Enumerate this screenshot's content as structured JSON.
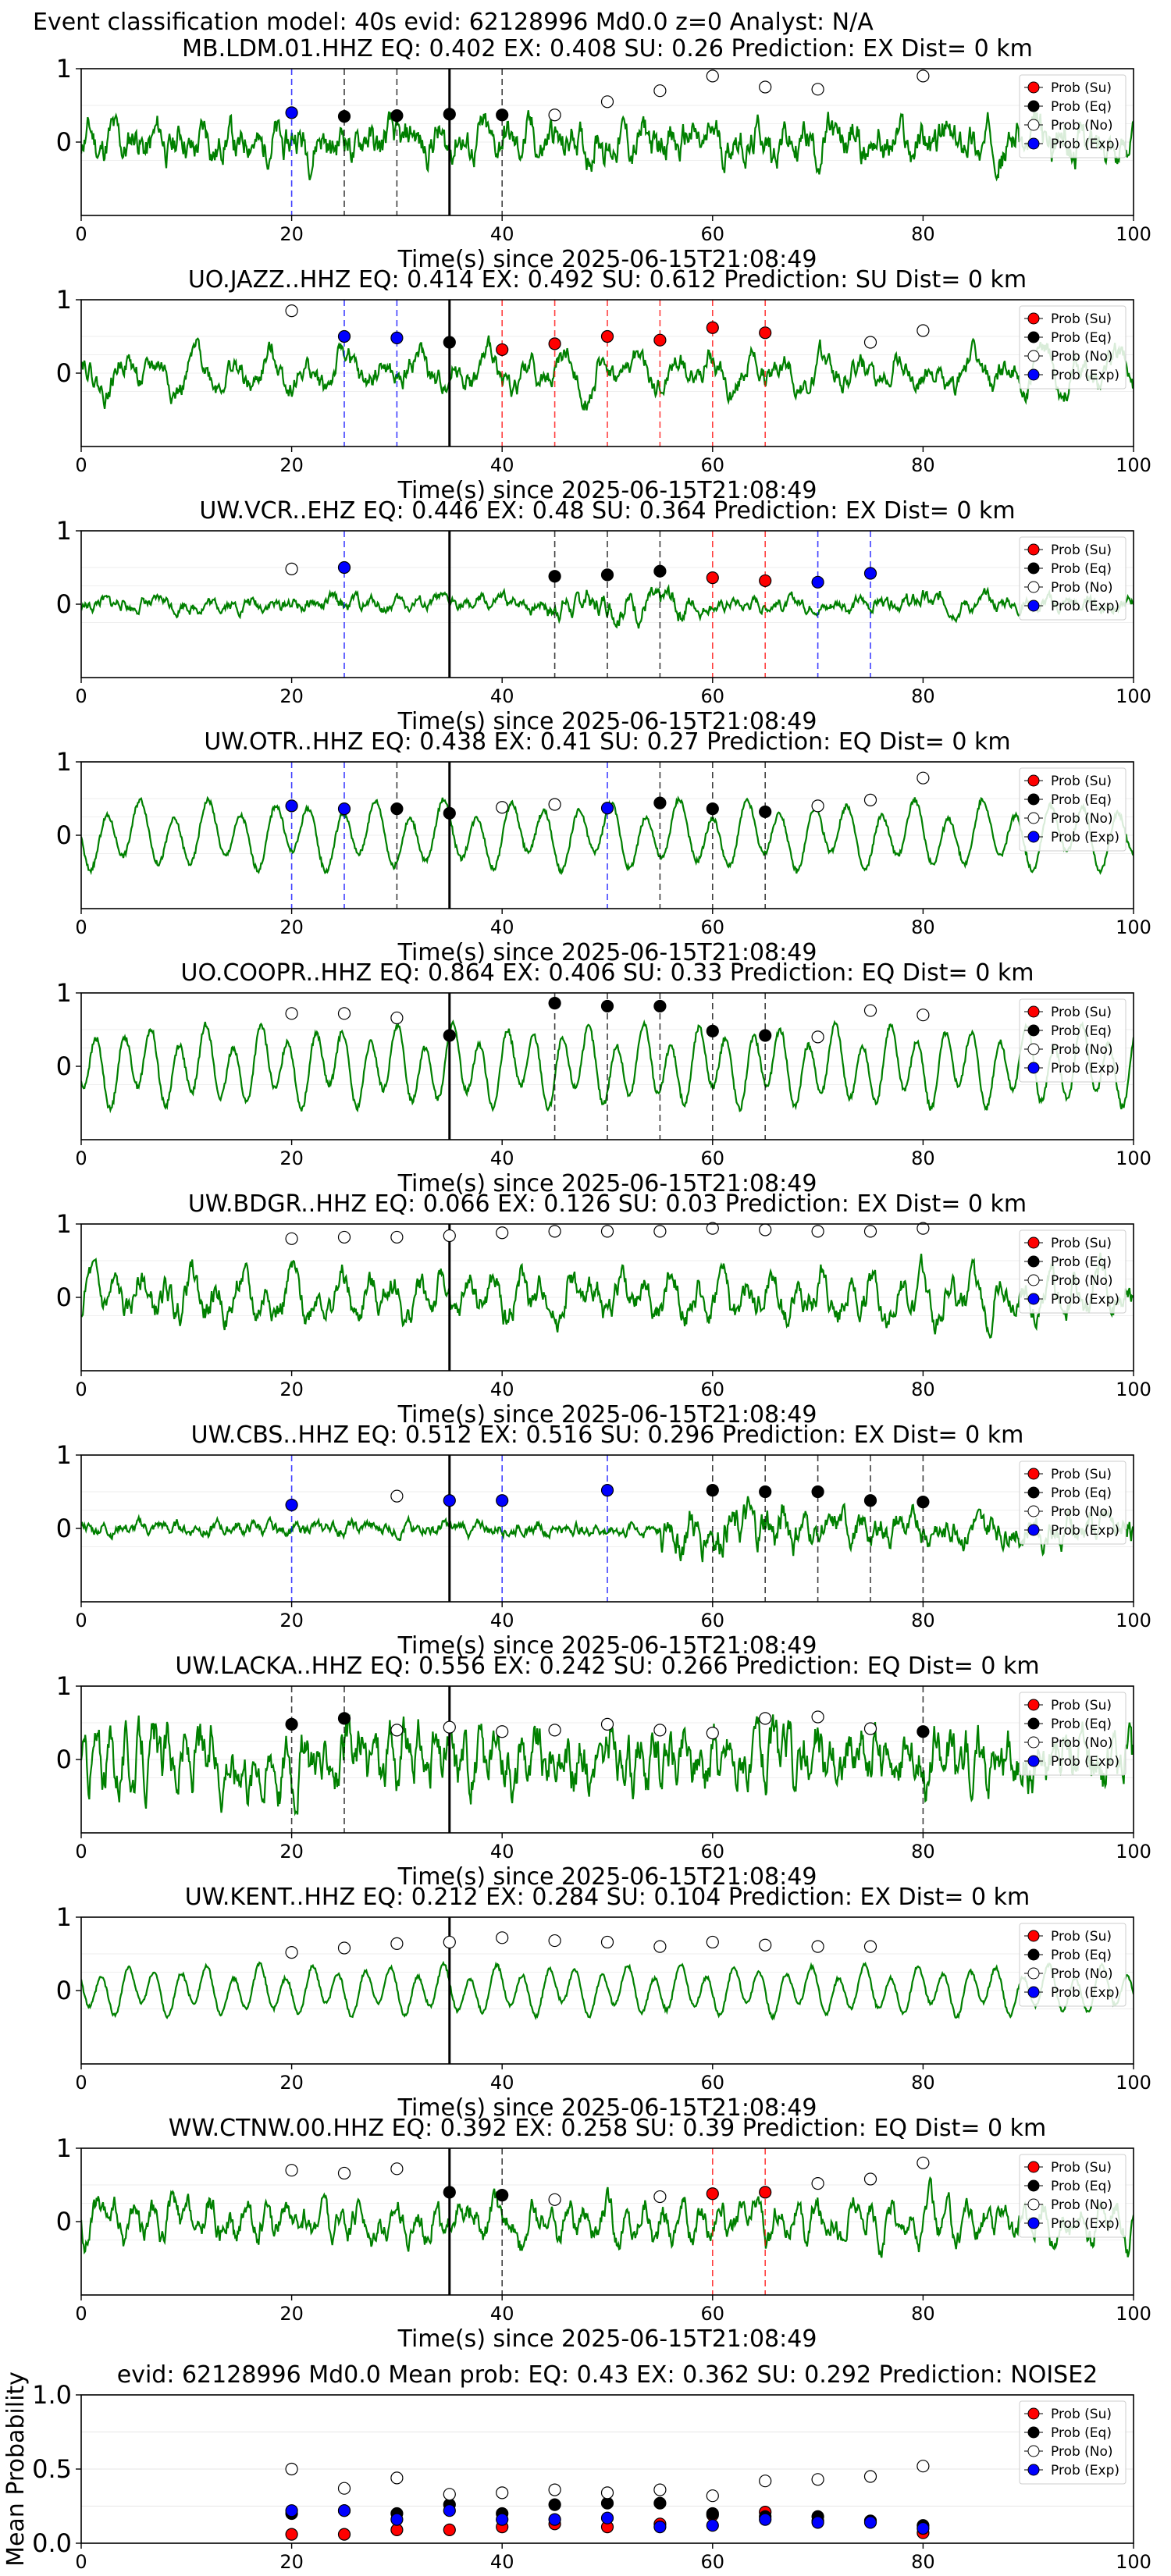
{
  "figure": {
    "suptitle": "Event classification model: 40s evid: 62128996 Md0.0 z=0 Analyst: N/A"
  },
  "legend": {
    "entries": [
      {
        "label": "Prob (Su)",
        "color": "#ff0000",
        "filled": true
      },
      {
        "label": "Prob (Eq)",
        "color": "#000000",
        "filled": true
      },
      {
        "label": "Prob (No)",
        "color": "#ffffff",
        "filled": false
      },
      {
        "label": "Prob (Exp)",
        "color": "#0000ff",
        "filled": true
      }
    ]
  },
  "colors": {
    "waveform": "#008000",
    "su": "#ff0000",
    "eq": "#000000",
    "no": "#ffffff",
    "exp": "#0000ff",
    "event_line": "#000000"
  },
  "chart_data": [
    {
      "type": "line",
      "title": "MB.LDM.01.HHZ   EQ: 0.402  EX: 0.408  SU: 0.26   Prediction: EX    Dist= 0 km",
      "xlabel": "Time(s) since 2025-06-15T21:08:49",
      "xlim": [
        0,
        100
      ],
      "ylim": [
        -1,
        1
      ],
      "xticks": [
        "0",
        "20",
        "40",
        "60",
        "80",
        "100"
      ],
      "yticks": [
        "1",
        "0"
      ],
      "event_time": 35,
      "waveform": {
        "style": "noisy",
        "amplitude": 0.35,
        "period": 2.2,
        "seed": 11
      },
      "points": [
        {
          "t": 20,
          "class": "exp",
          "p": 0.4
        },
        {
          "t": 25,
          "class": "eq",
          "p": 0.35
        },
        {
          "t": 30,
          "class": "eq",
          "p": 0.36
        },
        {
          "t": 35,
          "class": "eq",
          "p": 0.38
        },
        {
          "t": 40,
          "class": "eq",
          "p": 0.37
        },
        {
          "t": 45,
          "class": "no",
          "p": 0.37
        },
        {
          "t": 50,
          "class": "no",
          "p": 0.55
        },
        {
          "t": 55,
          "class": "no",
          "p": 0.7
        },
        {
          "t": 60,
          "class": "no",
          "p": 0.9
        },
        {
          "t": 65,
          "class": "no",
          "p": 0.75
        },
        {
          "t": 70,
          "class": "no",
          "p": 0.72
        },
        {
          "t": 80,
          "class": "no",
          "p": 0.9
        }
      ]
    },
    {
      "type": "line",
      "title": "UO.JAZZ..HHZ   EQ: 0.414  EX: 0.492  SU: 0.612   Prediction: SU    Dist= 0 km",
      "xlabel": "Time(s) since 2025-06-15T21:08:49",
      "xlim": [
        0,
        100
      ],
      "ylim": [
        -1,
        1
      ],
      "xticks": [
        "0",
        "20",
        "40",
        "60",
        "80",
        "100"
      ],
      "yticks": [
        "1",
        "0"
      ],
      "event_time": 35,
      "waveform": {
        "style": "mixed",
        "amplitude": 0.38,
        "period": 3.5,
        "seed": 22
      },
      "points": [
        {
          "t": 20,
          "class": "no",
          "p": 0.85
        },
        {
          "t": 25,
          "class": "exp",
          "p": 0.5
        },
        {
          "t": 30,
          "class": "exp",
          "p": 0.48
        },
        {
          "t": 35,
          "class": "eq",
          "p": 0.42
        },
        {
          "t": 40,
          "class": "su",
          "p": 0.32
        },
        {
          "t": 45,
          "class": "su",
          "p": 0.4
        },
        {
          "t": 50,
          "class": "su",
          "p": 0.5
        },
        {
          "t": 55,
          "class": "su",
          "p": 0.45
        },
        {
          "t": 60,
          "class": "su",
          "p": 0.62
        },
        {
          "t": 65,
          "class": "su",
          "p": 0.55
        },
        {
          "t": 75,
          "class": "no",
          "p": 0.42
        },
        {
          "t": 80,
          "class": "no",
          "p": 0.58
        }
      ]
    },
    {
      "type": "line",
      "title": "UW.VCR..EHZ   EQ: 0.446  EX: 0.48  SU: 0.364   Prediction: EX    Dist= 0 km",
      "xlabel": "Time(s) since 2025-06-15T21:08:49",
      "xlim": [
        0,
        100
      ],
      "ylim": [
        -1,
        1
      ],
      "xticks": [
        "0",
        "20",
        "40",
        "60",
        "80",
        "100"
      ],
      "yticks": [
        "1",
        "0"
      ],
      "event_time": 35,
      "waveform": {
        "style": "quiet",
        "amplitude": 0.25,
        "period": 2.0,
        "seed": 33
      },
      "points": [
        {
          "t": 20,
          "class": "no",
          "p": 0.48
        },
        {
          "t": 25,
          "class": "exp",
          "p": 0.5
        },
        {
          "t": 45,
          "class": "eq",
          "p": 0.38
        },
        {
          "t": 50,
          "class": "eq",
          "p": 0.4
        },
        {
          "t": 55,
          "class": "eq",
          "p": 0.45
        },
        {
          "t": 60,
          "class": "su",
          "p": 0.36
        },
        {
          "t": 65,
          "class": "su",
          "p": 0.32
        },
        {
          "t": 70,
          "class": "exp",
          "p": 0.3
        },
        {
          "t": 75,
          "class": "exp",
          "p": 0.42
        }
      ]
    },
    {
      "type": "line",
      "title": "UW.OTR..HHZ   EQ: 0.438  EX: 0.41  SU: 0.27   Prediction: EQ    Dist= 0 km",
      "xlabel": "Time(s) since 2025-06-15T21:08:49",
      "xlim": [
        0,
        100
      ],
      "ylim": [
        -1,
        1
      ],
      "xticks": [
        "0",
        "20",
        "40",
        "60",
        "80",
        "100"
      ],
      "yticks": [
        "1",
        "0"
      ],
      "event_time": 35,
      "waveform": {
        "style": "smooth",
        "amplitude": 0.55,
        "period": 3.2,
        "seed": 44
      },
      "points": [
        {
          "t": 20,
          "class": "exp",
          "p": 0.4
        },
        {
          "t": 25,
          "class": "exp",
          "p": 0.36
        },
        {
          "t": 30,
          "class": "eq",
          "p": 0.36
        },
        {
          "t": 35,
          "class": "eq",
          "p": 0.3
        },
        {
          "t": 40,
          "class": "no",
          "p": 0.38
        },
        {
          "t": 45,
          "class": "no",
          "p": 0.42
        },
        {
          "t": 50,
          "class": "exp",
          "p": 0.37
        },
        {
          "t": 55,
          "class": "eq",
          "p": 0.44
        },
        {
          "t": 60,
          "class": "eq",
          "p": 0.36
        },
        {
          "t": 65,
          "class": "eq",
          "p": 0.32
        },
        {
          "t": 70,
          "class": "no",
          "p": 0.4
        },
        {
          "t": 75,
          "class": "no",
          "p": 0.48
        },
        {
          "t": 80,
          "class": "no",
          "p": 0.78
        }
      ]
    },
    {
      "type": "line",
      "title": "UO.COOPR..HHZ   EQ: 0.864  EX: 0.406  SU: 0.33   Prediction: EQ    Dist= 0 km",
      "xlabel": "Time(s) since 2025-06-15T21:08:49",
      "xlim": [
        0,
        100
      ],
      "ylim": [
        -1,
        1
      ],
      "xticks": [
        "0",
        "20",
        "40",
        "60",
        "80",
        "100"
      ],
      "yticks": [
        "1",
        "0"
      ],
      "event_time": 35,
      "waveform": {
        "style": "smooth",
        "amplitude": 0.65,
        "period": 2.6,
        "seed": 55
      },
      "points": [
        {
          "t": 20,
          "class": "no",
          "p": 0.72
        },
        {
          "t": 25,
          "class": "no",
          "p": 0.72
        },
        {
          "t": 30,
          "class": "no",
          "p": 0.66
        },
        {
          "t": 35,
          "class": "eq",
          "p": 0.42
        },
        {
          "t": 45,
          "class": "eq",
          "p": 0.86
        },
        {
          "t": 50,
          "class": "eq",
          "p": 0.82
        },
        {
          "t": 55,
          "class": "eq",
          "p": 0.82
        },
        {
          "t": 60,
          "class": "eq",
          "p": 0.48
        },
        {
          "t": 65,
          "class": "eq",
          "p": 0.42
        },
        {
          "t": 70,
          "class": "no",
          "p": 0.4
        },
        {
          "t": 75,
          "class": "no",
          "p": 0.76
        },
        {
          "t": 80,
          "class": "no",
          "p": 0.7
        }
      ]
    },
    {
      "type": "line",
      "title": "UW.BDGR..HHZ   EQ: 0.066  EX: 0.126  SU: 0.03   Prediction: EX    Dist= 0 km",
      "xlabel": "Time(s) since 2025-06-15T21:08:49",
      "xlim": [
        0,
        100
      ],
      "ylim": [
        -1,
        1
      ],
      "xticks": [
        "0",
        "20",
        "40",
        "60",
        "80",
        "100"
      ],
      "yticks": [
        "1",
        "0"
      ],
      "event_time": 35,
      "waveform": {
        "style": "mixed",
        "amplitude": 0.45,
        "period": 2.4,
        "seed": 66
      },
      "points": [
        {
          "t": 20,
          "class": "no",
          "p": 0.8
        },
        {
          "t": 25,
          "class": "no",
          "p": 0.82
        },
        {
          "t": 30,
          "class": "no",
          "p": 0.82
        },
        {
          "t": 35,
          "class": "no",
          "p": 0.84
        },
        {
          "t": 40,
          "class": "no",
          "p": 0.88
        },
        {
          "t": 45,
          "class": "no",
          "p": 0.9
        },
        {
          "t": 50,
          "class": "no",
          "p": 0.9
        },
        {
          "t": 55,
          "class": "no",
          "p": 0.9
        },
        {
          "t": 60,
          "class": "no",
          "p": 0.94
        },
        {
          "t": 65,
          "class": "no",
          "p": 0.92
        },
        {
          "t": 70,
          "class": "no",
          "p": 0.9
        },
        {
          "t": 75,
          "class": "no",
          "p": 0.9
        },
        {
          "t": 80,
          "class": "no",
          "p": 0.94
        }
      ]
    },
    {
      "type": "line",
      "title": "UW.CBS..HHZ   EQ: 0.512  EX: 0.516  SU: 0.296   Prediction: EX    Dist= 0 km",
      "xlabel": "Time(s) since 2025-06-15T21:08:49",
      "xlim": [
        0,
        100
      ],
      "ylim": [
        -1,
        1
      ],
      "xticks": [
        "0",
        "20",
        "40",
        "60",
        "80",
        "100"
      ],
      "yticks": [
        "1",
        "0"
      ],
      "event_time": 35,
      "waveform": {
        "style": "burst",
        "amplitude": 0.18,
        "period": 1.8,
        "seed": 77
      },
      "points": [
        {
          "t": 20,
          "class": "exp",
          "p": 0.32
        },
        {
          "t": 30,
          "class": "no",
          "p": 0.44
        },
        {
          "t": 35,
          "class": "exp",
          "p": 0.38
        },
        {
          "t": 40,
          "class": "exp",
          "p": 0.38
        },
        {
          "t": 50,
          "class": "exp",
          "p": 0.52
        },
        {
          "t": 60,
          "class": "eq",
          "p": 0.52
        },
        {
          "t": 65,
          "class": "eq",
          "p": 0.5
        },
        {
          "t": 70,
          "class": "eq",
          "p": 0.5
        },
        {
          "t": 75,
          "class": "eq",
          "p": 0.38
        },
        {
          "t": 80,
          "class": "eq",
          "p": 0.36
        }
      ]
    },
    {
      "type": "line",
      "title": "UW.LACKA..HHZ   EQ: 0.556  EX: 0.242  SU: 0.266   Prediction: EQ    Dist= 0 km",
      "xlabel": "Time(s) since 2025-06-15T21:08:49",
      "xlim": [
        0,
        100
      ],
      "ylim": [
        -1,
        1
      ],
      "xticks": [
        "0",
        "20",
        "40",
        "60",
        "80",
        "100"
      ],
      "yticks": [
        "1",
        "0"
      ],
      "event_time": 35,
      "waveform": {
        "style": "noisy",
        "amplitude": 0.5,
        "period": 1.4,
        "seed": 88
      },
      "points": [
        {
          "t": 20,
          "class": "eq",
          "p": 0.48
        },
        {
          "t": 25,
          "class": "eq",
          "p": 0.56
        },
        {
          "t": 30,
          "class": "no",
          "p": 0.4
        },
        {
          "t": 35,
          "class": "no",
          "p": 0.44
        },
        {
          "t": 40,
          "class": "no",
          "p": 0.38
        },
        {
          "t": 45,
          "class": "no",
          "p": 0.4
        },
        {
          "t": 50,
          "class": "no",
          "p": 0.48
        },
        {
          "t": 55,
          "class": "no",
          "p": 0.4
        },
        {
          "t": 60,
          "class": "no",
          "p": 0.36
        },
        {
          "t": 65,
          "class": "no",
          "p": 0.56
        },
        {
          "t": 70,
          "class": "no",
          "p": 0.58
        },
        {
          "t": 75,
          "class": "no",
          "p": 0.42
        },
        {
          "t": 80,
          "class": "eq",
          "p": 0.38
        }
      ]
    },
    {
      "type": "line",
      "title": "UW.KENT..HHZ   EQ: 0.212  EX: 0.284  SU: 0.104   Prediction: EX    Dist= 0 km",
      "xlabel": "Time(s) since 2025-06-15T21:08:49",
      "xlim": [
        0,
        100
      ],
      "ylim": [
        -1,
        1
      ],
      "xticks": [
        "0",
        "20",
        "40",
        "60",
        "80",
        "100"
      ],
      "yticks": [
        "1",
        "0"
      ],
      "event_time": 35,
      "waveform": {
        "style": "smooth",
        "amplitude": 0.4,
        "period": 2.5,
        "seed": 99
      },
      "points": [
        {
          "t": 20,
          "class": "no",
          "p": 0.52
        },
        {
          "t": 25,
          "class": "no",
          "p": 0.58
        },
        {
          "t": 30,
          "class": "no",
          "p": 0.64
        },
        {
          "t": 35,
          "class": "no",
          "p": 0.66
        },
        {
          "t": 40,
          "class": "no",
          "p": 0.72
        },
        {
          "t": 45,
          "class": "no",
          "p": 0.68
        },
        {
          "t": 50,
          "class": "no",
          "p": 0.66
        },
        {
          "t": 55,
          "class": "no",
          "p": 0.6
        },
        {
          "t": 60,
          "class": "no",
          "p": 0.66
        },
        {
          "t": 65,
          "class": "no",
          "p": 0.62
        },
        {
          "t": 70,
          "class": "no",
          "p": 0.6
        },
        {
          "t": 75,
          "class": "no",
          "p": 0.6
        }
      ]
    },
    {
      "type": "line",
      "title": "WW.CTNW.00.HHZ   EQ: 0.392  EX: 0.258  SU: 0.39   Prediction: EQ    Dist= 0 km",
      "xlabel": "Time(s) since 2025-06-15T21:08:49",
      "xlim": [
        0,
        100
      ],
      "ylim": [
        -1,
        1
      ],
      "xticks": [
        "0",
        "20",
        "40",
        "60",
        "80",
        "100"
      ],
      "yticks": [
        "1",
        "0"
      ],
      "event_time": 35,
      "waveform": {
        "style": "mixed",
        "amplitude": 0.42,
        "period": 1.8,
        "seed": 111
      },
      "points": [
        {
          "t": 20,
          "class": "no",
          "p": 0.7
        },
        {
          "t": 25,
          "class": "no",
          "p": 0.66
        },
        {
          "t": 30,
          "class": "no",
          "p": 0.72
        },
        {
          "t": 35,
          "class": "eq",
          "p": 0.4
        },
        {
          "t": 40,
          "class": "eq",
          "p": 0.36
        },
        {
          "t": 45,
          "class": "no",
          "p": 0.3
        },
        {
          "t": 55,
          "class": "no",
          "p": 0.34
        },
        {
          "t": 60,
          "class": "su",
          "p": 0.38
        },
        {
          "t": 65,
          "class": "su",
          "p": 0.4
        },
        {
          "t": 70,
          "class": "no",
          "p": 0.52
        },
        {
          "t": 75,
          "class": "no",
          "p": 0.58
        },
        {
          "t": 80,
          "class": "no",
          "p": 0.8
        }
      ]
    },
    {
      "type": "scatter",
      "title": "evid: 62128996  Md0.0   Mean prob:   EQ: 0.43  EX: 0.362  SU: 0.292   Prediction: NOISE2",
      "ylabel": "Mean Probability",
      "xlim": [
        0,
        100
      ],
      "ylim": [
        0,
        1
      ],
      "xticks": [
        "0",
        "20",
        "40",
        "60",
        "80",
        "100"
      ],
      "yticks": [
        "1.0",
        "0.5",
        "0.0"
      ],
      "series": [
        {
          "name": "Prob (Su)",
          "class": "su",
          "x": [
            20,
            25,
            30,
            35,
            40,
            45,
            50,
            55,
            60,
            65,
            70,
            75,
            80
          ],
          "y": [
            0.06,
            0.06,
            0.09,
            0.09,
            0.11,
            0.13,
            0.11,
            0.13,
            0.19,
            0.21,
            0.15,
            0.15,
            0.07
          ]
        },
        {
          "name": "Prob (Eq)",
          "class": "eq",
          "x": [
            20,
            25,
            30,
            35,
            40,
            45,
            50,
            55,
            60,
            65,
            70,
            75,
            80
          ],
          "y": [
            0.2,
            0.22,
            0.2,
            0.26,
            0.2,
            0.26,
            0.27,
            0.27,
            0.2,
            0.18,
            0.18,
            0.15,
            0.12
          ]
        },
        {
          "name": "Prob (No)",
          "class": "no",
          "x": [
            20,
            25,
            30,
            35,
            40,
            45,
            50,
            55,
            60,
            65,
            70,
            75,
            80
          ],
          "y": [
            0.5,
            0.37,
            0.44,
            0.33,
            0.34,
            0.36,
            0.34,
            0.36,
            0.32,
            0.42,
            0.43,
            0.45,
            0.52
          ]
        },
        {
          "name": "Prob (Exp)",
          "class": "exp",
          "x": [
            20,
            25,
            30,
            35,
            40,
            45,
            50,
            55,
            60,
            65,
            70,
            75,
            80
          ],
          "y": [
            0.22,
            0.22,
            0.16,
            0.22,
            0.16,
            0.16,
            0.17,
            0.11,
            0.12,
            0.16,
            0.14,
            0.14,
            0.1
          ]
        }
      ]
    }
  ]
}
